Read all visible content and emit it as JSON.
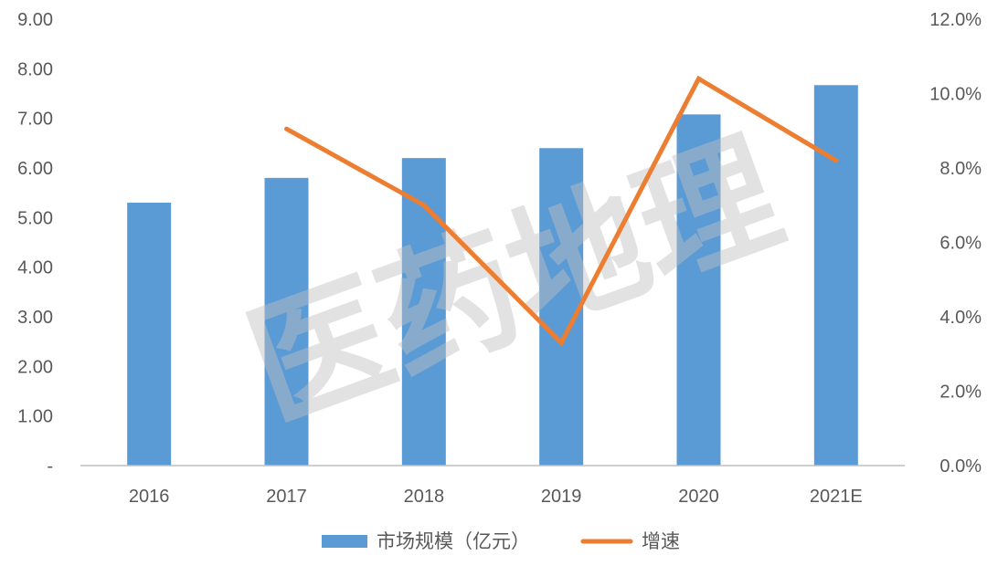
{
  "chart_data": {
    "type": "bar",
    "categories": [
      "2016",
      "2017",
      "2018",
      "2019",
      "2020",
      "2021E"
    ],
    "series": [
      {
        "name": "市场规模（亿元）",
        "kind": "bar",
        "axis": "left",
        "color": "#5b9bd5",
        "values": [
          5.3,
          5.8,
          6.2,
          6.4,
          7.08,
          7.67
        ]
      },
      {
        "name": "增速",
        "kind": "line",
        "axis": "right",
        "color": "#ed7d31",
        "values": [
          null,
          9.05,
          7.0,
          3.3,
          10.4,
          8.2
        ]
      }
    ],
    "y_left": {
      "ylim": [
        0,
        9
      ],
      "ticks": [
        0,
        1,
        2,
        3,
        4,
        5,
        6,
        7,
        8,
        9
      ],
      "tick_labels": [
        "-",
        "1.00",
        "2.00",
        "3.00",
        "4.00",
        "5.00",
        "6.00",
        "7.00",
        "8.00",
        "9.00"
      ]
    },
    "y_right": {
      "ylim": [
        0,
        12
      ],
      "ticks": [
        0,
        2,
        4,
        6,
        8,
        10,
        12
      ],
      "tick_labels": [
        "0.0%",
        "2.0%",
        "4.0%",
        "6.0%",
        "8.0%",
        "10.0%",
        "12.0%"
      ]
    },
    "grid": false,
    "legend_position": "bottom"
  },
  "watermark": {
    "text": "医药地理",
    "color": "#bfbfbf"
  }
}
